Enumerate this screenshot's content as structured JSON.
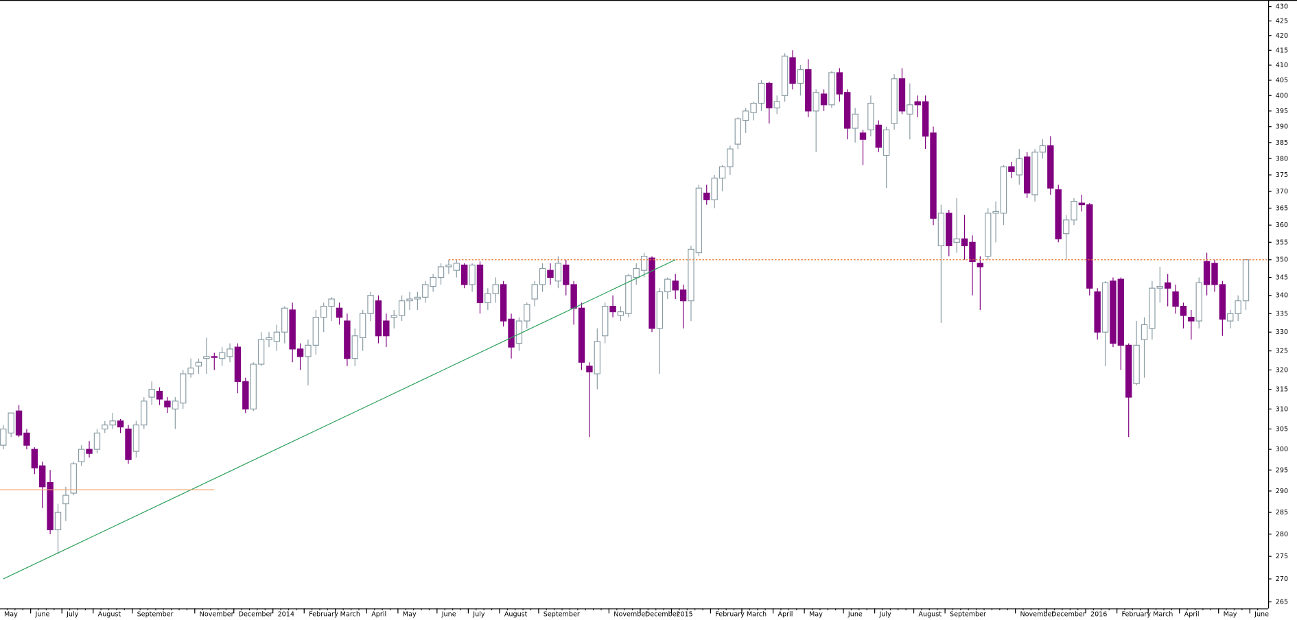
{
  "chart_data": {
    "type": "candlestick",
    "scale": "log",
    "up_color": "#ffffff",
    "up_stroke": "#8a9ca4",
    "down_color": "#800080",
    "ylim": [
      265,
      430
    ],
    "yticks": [
      265,
      270,
      275,
      280,
      285,
      290,
      295,
      300,
      305,
      310,
      315,
      320,
      325,
      330,
      335,
      340,
      345,
      350,
      355,
      360,
      365,
      370,
      375,
      380,
      385,
      390,
      395,
      400,
      405,
      410,
      415,
      420,
      425,
      430
    ],
    "xlim": [
      -0.42,
      161.85
    ],
    "xticks": [
      {
        "value": 0,
        "label": "May"
      },
      {
        "value": 4,
        "label": "June"
      },
      {
        "value": 8,
        "label": "July"
      },
      {
        "value": 12,
        "label": "August"
      },
      {
        "value": 17,
        "label": "September"
      },
      {
        "value": 25,
        "label": "November"
      },
      {
        "value": 30,
        "label": "December"
      },
      {
        "value": 35,
        "label": "2014"
      },
      {
        "value": 39,
        "label": "February"
      },
      {
        "value": 43,
        "label": "March"
      },
      {
        "value": 47,
        "label": "April"
      },
      {
        "value": 51,
        "label": "May"
      },
      {
        "value": 56,
        "label": "June"
      },
      {
        "value": 60,
        "label": "July"
      },
      {
        "value": 64,
        "label": "August"
      },
      {
        "value": 69,
        "label": "September"
      },
      {
        "value": 78,
        "label": "November"
      },
      {
        "value": 82,
        "label": "December"
      },
      {
        "value": 86,
        "label": "2015"
      },
      {
        "value": 91,
        "label": "February"
      },
      {
        "value": 95,
        "label": "March"
      },
      {
        "value": 99,
        "label": "April"
      },
      {
        "value": 103,
        "label": "May"
      },
      {
        "value": 108,
        "label": "June"
      },
      {
        "value": 112,
        "label": "July"
      },
      {
        "value": 117,
        "label": "August"
      },
      {
        "value": 121,
        "label": "September"
      },
      {
        "value": 130,
        "label": "November"
      },
      {
        "value": 134,
        "label": "December"
      },
      {
        "value": 139,
        "label": "2016"
      },
      {
        "value": 143,
        "label": "February"
      },
      {
        "value": 147,
        "label": "March"
      },
      {
        "value": 151,
        "label": "April"
      },
      {
        "value": 156,
        "label": "May"
      },
      {
        "value": 160,
        "label": "June"
      }
    ],
    "ohlc": [
      [
        301,
        306,
        300,
        305
      ],
      [
        304,
        309,
        303,
        309
      ],
      [
        309.5,
        311,
        303,
        303.5
      ],
      [
        304,
        305,
        300,
        301
      ],
      [
        300,
        300.5,
        294,
        295.5
      ],
      [
        296,
        297,
        286,
        291
      ],
      [
        292,
        295,
        280,
        281
      ],
      [
        281,
        287,
        275.5,
        285
      ],
      [
        287,
        291,
        283,
        289
      ],
      [
        289.5,
        297,
        289,
        296.5
      ],
      [
        297,
        301,
        296,
        300
      ],
      [
        300,
        302,
        298,
        299
      ],
      [
        300,
        305,
        299,
        304
      ],
      [
        305,
        307,
        304,
        306
      ],
      [
        306,
        309,
        305,
        307
      ],
      [
        307,
        307.5,
        304,
        305.5
      ],
      [
        305,
        306,
        296.5,
        297.5
      ],
      [
        299.5,
        307,
        298,
        306
      ],
      [
        306,
        313,
        305,
        312
      ],
      [
        313,
        317,
        311,
        315
      ],
      [
        314.5,
        315.5,
        311,
        312.5
      ],
      [
        312,
        313,
        309,
        310.5
      ],
      [
        310,
        313,
        305,
        312
      ],
      [
        311.5,
        320,
        310,
        319
      ],
      [
        319,
        323,
        318,
        320.5
      ],
      [
        321,
        323,
        319,
        322
      ],
      [
        323,
        328.5,
        319,
        323.5
      ],
      [
        323.5,
        324.5,
        320,
        323.3
      ],
      [
        323,
        326,
        321,
        324.5
      ],
      [
        323.5,
        327,
        322,
        325.5
      ],
      [
        326,
        327,
        314,
        317
      ],
      [
        317,
        318,
        309,
        310
      ],
      [
        310,
        322,
        309.5,
        321.5
      ],
      [
        321.5,
        330,
        321,
        328
      ],
      [
        328,
        330,
        326,
        328.5
      ],
      [
        327.5,
        332,
        325,
        330
      ],
      [
        330,
        337,
        327,
        336.5
      ],
      [
        336,
        338,
        322,
        325.5
      ],
      [
        325.5,
        327,
        320,
        323.5
      ],
      [
        323.5,
        328,
        316,
        326.5
      ],
      [
        326.5,
        336,
        324,
        334
      ],
      [
        334,
        338,
        330,
        337
      ],
      [
        337,
        339.5,
        333,
        339
      ],
      [
        336.5,
        338,
        332,
        334
      ],
      [
        333,
        335,
        321,
        323
      ],
      [
        323,
        331,
        321,
        329
      ],
      [
        328.5,
        336,
        325,
        335
      ],
      [
        335,
        341,
        333,
        340
      ],
      [
        338.5,
        340,
        327,
        329
      ],
      [
        333,
        335,
        326,
        329
      ],
      [
        334,
        336,
        331,
        334.5
      ],
      [
        334.5,
        340,
        333,
        338.5
      ],
      [
        338.5,
        341,
        336,
        339
      ],
      [
        339,
        341,
        336,
        339.5
      ],
      [
        339.5,
        344,
        338,
        343
      ],
      [
        342.5,
        346,
        341,
        345
      ],
      [
        345,
        349,
        343,
        348
      ],
      [
        348,
        350,
        346,
        348.5
      ],
      [
        347,
        350,
        345,
        349
      ],
      [
        348.5,
        349,
        342,
        343
      ],
      [
        343,
        349,
        341,
        348.5
      ],
      [
        348.5,
        349.5,
        335,
        338
      ],
      [
        338,
        342,
        336,
        340.5
      ],
      [
        340.5,
        345,
        338,
        343
      ],
      [
        343,
        344,
        331.5,
        333
      ],
      [
        333.5,
        335,
        323,
        326
      ],
      [
        327,
        334,
        325,
        333
      ],
      [
        333,
        338,
        331,
        337.5
      ],
      [
        339,
        344,
        337,
        343
      ],
      [
        343,
        349,
        341,
        347.5
      ],
      [
        347,
        349,
        343,
        345
      ],
      [
        344,
        351,
        342,
        349
      ],
      [
        348.5,
        350,
        340,
        343
      ],
      [
        343,
        344,
        332,
        336.5
      ],
      [
        336.5,
        338,
        320,
        322
      ],
      [
        321,
        322,
        303,
        319.5
      ],
      [
        319,
        331,
        315,
        327.5
      ],
      [
        329,
        338,
        327,
        337
      ],
      [
        337,
        340,
        334,
        335.5
      ],
      [
        334.5,
        337,
        333,
        335.5
      ],
      [
        335,
        346,
        334,
        345.5
      ],
      [
        345,
        349,
        343,
        347.5
      ],
      [
        347,
        352,
        345,
        351
      ],
      [
        350.5,
        351,
        330,
        331
      ],
      [
        331,
        342,
        319,
        341
      ],
      [
        341,
        345,
        339,
        344.5
      ],
      [
        344,
        346,
        339,
        341.5
      ],
      [
        341.5,
        343,
        331,
        338.5
      ],
      [
        338.5,
        354,
        333,
        353
      ],
      [
        352,
        372,
        351,
        371
      ],
      [
        369.5,
        372,
        366,
        367.5
      ],
      [
        367.5,
        375,
        365,
        374
      ],
      [
        374,
        378,
        370,
        377.5
      ],
      [
        377.5,
        384,
        375,
        383
      ],
      [
        384.5,
        393,
        383,
        392.5
      ],
      [
        392,
        396,
        388,
        395
      ],
      [
        394.5,
        398,
        392,
        397.5
      ],
      [
        397.5,
        405,
        395,
        404
      ],
      [
        404,
        404.5,
        391,
        396
      ],
      [
        396,
        400,
        394,
        398
      ],
      [
        400,
        414,
        398,
        413
      ],
      [
        412.5,
        415,
        402,
        404
      ],
      [
        404,
        410,
        400,
        408.5
      ],
      [
        408.5,
        412,
        393,
        395
      ],
      [
        395,
        402,
        382,
        401
      ],
      [
        400.5,
        402,
        395,
        397
      ],
      [
        397,
        408,
        396,
        407.5
      ],
      [
        407.5,
        409,
        398,
        400.5
      ],
      [
        401,
        402,
        386,
        389.5
      ],
      [
        389.5,
        396,
        385,
        394
      ],
      [
        388,
        389,
        378,
        386
      ],
      [
        389,
        400,
        387,
        397.5
      ],
      [
        390.5,
        392,
        382,
        383.5
      ],
      [
        381,
        390,
        371,
        389
      ],
      [
        391,
        407,
        389,
        405.5
      ],
      [
        405.5,
        409,
        394,
        395
      ],
      [
        394,
        404,
        386,
        397
      ],
      [
        398,
        400,
        393,
        397
      ],
      [
        398,
        400,
        383,
        387
      ],
      [
        388,
        390,
        360,
        362
      ],
      [
        354,
        366,
        332.5,
        363.5
      ],
      [
        363.5,
        364.5,
        351,
        354
      ],
      [
        355,
        368,
        352,
        356
      ],
      [
        356,
        363,
        350,
        354
      ],
      [
        355,
        357,
        340,
        349.5
      ],
      [
        349,
        351,
        336,
        348
      ],
      [
        351,
        365,
        350,
        363.5
      ],
      [
        363.5,
        367,
        355,
        364
      ],
      [
        363.5,
        378,
        360,
        377.5
      ],
      [
        377.5,
        379,
        374,
        376
      ],
      [
        375,
        383,
        372,
        380
      ],
      [
        380.5,
        382,
        368,
        369.5
      ],
      [
        369,
        383,
        367,
        382
      ],
      [
        382,
        386,
        380,
        384
      ],
      [
        384,
        387,
        369,
        371
      ],
      [
        370.5,
        372,
        355,
        356
      ],
      [
        357.5,
        363,
        350,
        361.5
      ],
      [
        361.5,
        368,
        360,
        367
      ],
      [
        366.5,
        369,
        364,
        366
      ],
      [
        366,
        366.5,
        340,
        342
      ],
      [
        341,
        342,
        328,
        330
      ],
      [
        330,
        344,
        321,
        343.5
      ],
      [
        344,
        345,
        326,
        327
      ],
      [
        344.5,
        345,
        320,
        326.5
      ],
      [
        326.5,
        327,
        303,
        313
      ],
      [
        316.5,
        333,
        316,
        326.5
      ],
      [
        328,
        334,
        318,
        332
      ],
      [
        331,
        344,
        328,
        342
      ],
      [
        342,
        348,
        338,
        342.5
      ],
      [
        343.5,
        346,
        337,
        342
      ],
      [
        341,
        343,
        335,
        337
      ],
      [
        337,
        338,
        331,
        334.5
      ],
      [
        334,
        336,
        328,
        333
      ],
      [
        333,
        345,
        331,
        343.5
      ],
      [
        349.5,
        352,
        340,
        343
      ],
      [
        349,
        350,
        341,
        343
      ],
      [
        343,
        344,
        329,
        333.5
      ],
      [
        333,
        336,
        331,
        335
      ],
      [
        335,
        340,
        333,
        338.5
      ],
      [
        338.5,
        350,
        336,
        350
      ]
    ],
    "lines": [
      {
        "x": [
          57,
          161.85
        ],
        "y": [
          350,
          350
        ],
        "color": "#e8702a",
        "dashed": true
      },
      {
        "x": [
          0,
          86
        ],
        "y": [
          270,
          350
        ],
        "color": "#2ca05a",
        "dashed": false
      },
      {
        "x": [
          -0.42,
          27
        ],
        "y": [
          290.3,
          290.3
        ],
        "color": "#f0a070",
        "dashed": false
      }
    ]
  }
}
